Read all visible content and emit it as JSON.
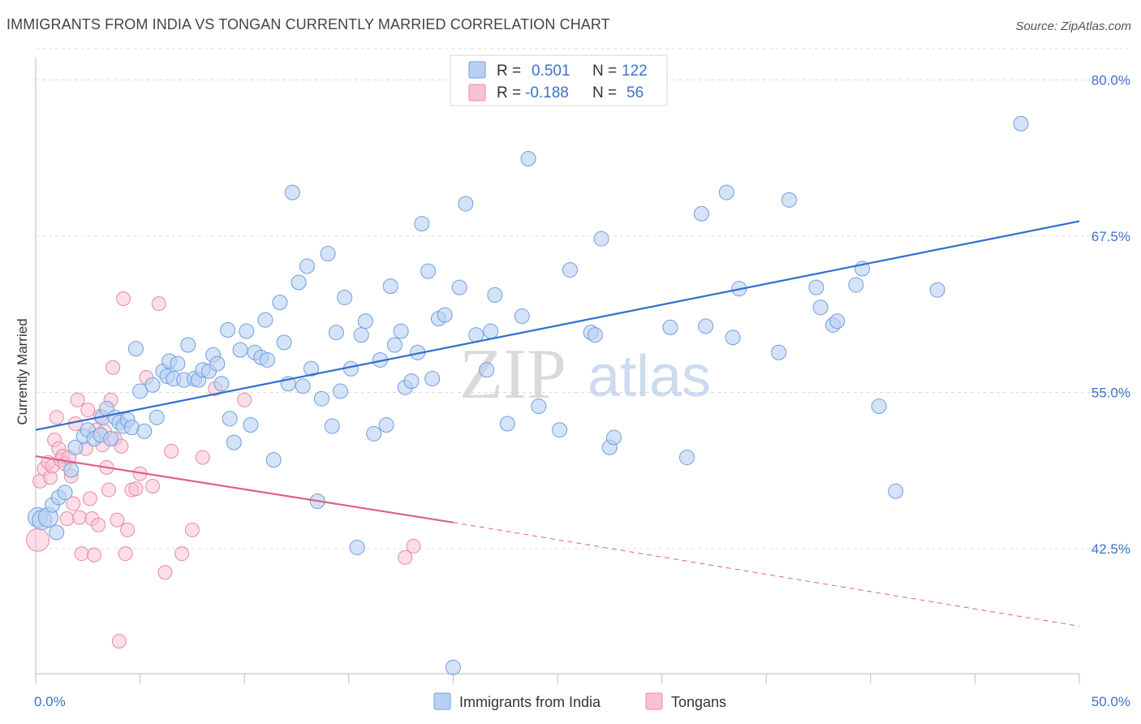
{
  "title": "IMMIGRANTS FROM INDIA VS TONGAN CURRENTLY MARRIED CORRELATION CHART",
  "source": "Source: ZipAtlas.com",
  "watermark": {
    "zip": "ZIP",
    "atlas": "atlas"
  },
  "colors": {
    "india_fill": "#b8d0f2",
    "india_stroke": "#6f9fde",
    "india_line": "#2f6fcf",
    "tongan_fill": "#f7c2d2",
    "tongan_stroke": "#e88aa8",
    "tongan_line": "#e0608a",
    "axis_label": "#3b73c7",
    "grid": "#dcdcdc"
  },
  "legend": {
    "rows": [
      {
        "r_label": "R =",
        "r_value": "0.501",
        "n_label": "N =",
        "n_value": "122"
      },
      {
        "r_label": "R =",
        "r_value": "-0.188",
        "n_label": "N =",
        "n_value": "56"
      }
    ]
  },
  "chart_data": {
    "type": "scatter",
    "title": "IMMIGRANTS FROM INDIA VS TONGAN CURRENTLY MARRIED CORRELATION CHART",
    "xlabel": "",
    "ylabel": "Currently Married",
    "xlim": [
      0,
      50
    ],
    "ylim": [
      32.5,
      82.5
    ],
    "x_tick_labels": [
      "0.0%",
      "50.0%"
    ],
    "y_ticks": [
      42.5,
      55.0,
      67.5,
      80.0
    ],
    "y_tick_labels": [
      "42.5%",
      "55.0%",
      "67.5%",
      "80.0%"
    ],
    "grid": "horizontal dashed",
    "legend_position": "top-center",
    "series": [
      {
        "name": "Immigrants from India",
        "r": 0.501,
        "n": 122,
        "trend": {
          "x0": 0,
          "y0": 52.0,
          "x1": 50,
          "y1": 68.7
        },
        "points": [
          [
            0.1,
            45.0
          ],
          [
            0.3,
            44.8
          ],
          [
            0.6,
            45.0
          ],
          [
            0.8,
            46.0
          ],
          [
            1.0,
            43.8
          ],
          [
            1.1,
            46.6
          ],
          [
            1.4,
            47.0
          ],
          [
            1.7,
            48.8
          ],
          [
            1.9,
            50.6
          ],
          [
            2.3,
            51.5
          ],
          [
            2.5,
            52.0
          ],
          [
            2.8,
            51.3
          ],
          [
            3.1,
            51.6
          ],
          [
            3.2,
            53.0
          ],
          [
            3.4,
            53.7
          ],
          [
            3.6,
            51.3
          ],
          [
            3.8,
            53.0
          ],
          [
            4.0,
            52.6
          ],
          [
            4.2,
            52.3
          ],
          [
            4.4,
            52.8
          ],
          [
            4.6,
            52.2
          ],
          [
            4.8,
            58.5
          ],
          [
            5.0,
            55.1
          ],
          [
            5.2,
            51.9
          ],
          [
            5.6,
            55.6
          ],
          [
            5.8,
            53.0
          ],
          [
            6.1,
            56.7
          ],
          [
            6.3,
            56.3
          ],
          [
            6.4,
            57.5
          ],
          [
            6.6,
            56.1
          ],
          [
            6.8,
            57.3
          ],
          [
            7.1,
            56.0
          ],
          [
            7.3,
            58.8
          ],
          [
            7.6,
            56.1
          ],
          [
            7.8,
            56.0
          ],
          [
            8.0,
            56.8
          ],
          [
            8.3,
            56.7
          ],
          [
            8.5,
            58.0
          ],
          [
            8.7,
            57.3
          ],
          [
            8.9,
            55.7
          ],
          [
            9.2,
            60.0
          ],
          [
            9.3,
            52.9
          ],
          [
            9.5,
            51.0
          ],
          [
            9.8,
            58.4
          ],
          [
            10.1,
            59.9
          ],
          [
            10.3,
            52.4
          ],
          [
            10.5,
            58.2
          ],
          [
            10.8,
            57.8
          ],
          [
            11.0,
            60.8
          ],
          [
            11.1,
            57.6
          ],
          [
            11.4,
            49.6
          ],
          [
            11.7,
            62.2
          ],
          [
            11.9,
            59.0
          ],
          [
            12.1,
            55.7
          ],
          [
            12.3,
            71.0
          ],
          [
            12.6,
            63.8
          ],
          [
            12.8,
            55.5
          ],
          [
            13.0,
            65.1
          ],
          [
            13.2,
            56.9
          ],
          [
            13.5,
            46.3
          ],
          [
            13.7,
            54.5
          ],
          [
            14.0,
            66.1
          ],
          [
            14.2,
            52.3
          ],
          [
            14.4,
            59.8
          ],
          [
            14.6,
            55.1
          ],
          [
            14.8,
            62.6
          ],
          [
            15.1,
            56.9
          ],
          [
            15.4,
            42.6
          ],
          [
            15.6,
            59.6
          ],
          [
            15.8,
            60.7
          ],
          [
            16.2,
            51.7
          ],
          [
            16.5,
            57.6
          ],
          [
            16.8,
            52.4
          ],
          [
            17.0,
            63.5
          ],
          [
            17.2,
            58.8
          ],
          [
            17.5,
            59.9
          ],
          [
            17.7,
            55.4
          ],
          [
            18.0,
            55.9
          ],
          [
            18.3,
            58.2
          ],
          [
            18.5,
            68.5
          ],
          [
            18.8,
            64.7
          ],
          [
            19.0,
            56.1
          ],
          [
            19.3,
            60.9
          ],
          [
            19.6,
            61.2
          ],
          [
            20.0,
            33.0
          ],
          [
            20.3,
            63.4
          ],
          [
            20.6,
            70.1
          ],
          [
            21.1,
            59.6
          ],
          [
            21.6,
            56.8
          ],
          [
            21.8,
            59.9
          ],
          [
            22.0,
            62.8
          ],
          [
            22.6,
            52.5
          ],
          [
            23.3,
            61.1
          ],
          [
            23.6,
            73.7
          ],
          [
            24.1,
            53.9
          ],
          [
            25.1,
            52.0
          ],
          [
            25.6,
            64.8
          ],
          [
            26.6,
            59.8
          ],
          [
            26.8,
            59.6
          ],
          [
            27.1,
            67.3
          ],
          [
            27.5,
            50.6
          ],
          [
            27.7,
            51.4
          ],
          [
            30.4,
            60.2
          ],
          [
            31.2,
            49.8
          ],
          [
            31.9,
            69.3
          ],
          [
            32.1,
            60.3
          ],
          [
            33.1,
            71.0
          ],
          [
            33.4,
            59.4
          ],
          [
            33.7,
            63.3
          ],
          [
            35.6,
            58.2
          ],
          [
            36.1,
            70.4
          ],
          [
            37.4,
            63.4
          ],
          [
            37.6,
            61.8
          ],
          [
            38.2,
            60.4
          ],
          [
            38.4,
            60.7
          ],
          [
            39.3,
            63.6
          ],
          [
            39.6,
            64.9
          ],
          [
            40.4,
            53.9
          ],
          [
            41.2,
            47.1
          ],
          [
            43.2,
            63.2
          ],
          [
            47.2,
            76.5
          ]
        ]
      },
      {
        "name": "Tongans",
        "r": -0.188,
        "n": 56,
        "trend": {
          "x0": 0,
          "y0": 49.9,
          "x1": 20,
          "y1": 44.6,
          "dash_x1": 50,
          "dash_y1": 36.3
        },
        "points": [
          [
            0.1,
            43.2
          ],
          [
            0.2,
            47.9
          ],
          [
            0.4,
            48.9
          ],
          [
            0.6,
            49.4
          ],
          [
            0.7,
            48.2
          ],
          [
            0.8,
            49.1
          ],
          [
            0.9,
            51.2
          ],
          [
            1.0,
            53.0
          ],
          [
            1.1,
            50.5
          ],
          [
            1.2,
            49.6
          ],
          [
            1.3,
            49.9
          ],
          [
            1.4,
            49.3
          ],
          [
            1.5,
            44.9
          ],
          [
            1.6,
            49.8
          ],
          [
            1.7,
            48.3
          ],
          [
            1.8,
            46.1
          ],
          [
            1.9,
            52.5
          ],
          [
            2.0,
            54.4
          ],
          [
            2.1,
            45.0
          ],
          [
            2.2,
            42.1
          ],
          [
            2.4,
            50.5
          ],
          [
            2.5,
            53.6
          ],
          [
            2.6,
            46.5
          ],
          [
            2.7,
            44.9
          ],
          [
            2.8,
            42.0
          ],
          [
            2.9,
            52.0
          ],
          [
            3.0,
            44.4
          ],
          [
            3.1,
            53.1
          ],
          [
            3.2,
            50.8
          ],
          [
            3.3,
            51.9
          ],
          [
            3.4,
            49.0
          ],
          [
            3.5,
            47.2
          ],
          [
            3.6,
            54.4
          ],
          [
            3.7,
            57.0
          ],
          [
            3.8,
            51.3
          ],
          [
            3.9,
            44.8
          ],
          [
            4.0,
            35.1
          ],
          [
            4.1,
            50.7
          ],
          [
            4.2,
            62.5
          ],
          [
            4.3,
            42.1
          ],
          [
            4.4,
            44.0
          ],
          [
            4.6,
            47.2
          ],
          [
            4.8,
            47.3
          ],
          [
            5.0,
            48.5
          ],
          [
            5.3,
            56.2
          ],
          [
            5.6,
            47.5
          ],
          [
            5.9,
            62.1
          ],
          [
            6.2,
            40.6
          ],
          [
            6.5,
            50.3
          ],
          [
            7.0,
            42.1
          ],
          [
            7.5,
            44.0
          ],
          [
            8.0,
            49.8
          ],
          [
            8.6,
            55.3
          ],
          [
            10.0,
            54.4
          ],
          [
            17.7,
            41.8
          ],
          [
            18.1,
            42.7
          ]
        ]
      }
    ]
  }
}
